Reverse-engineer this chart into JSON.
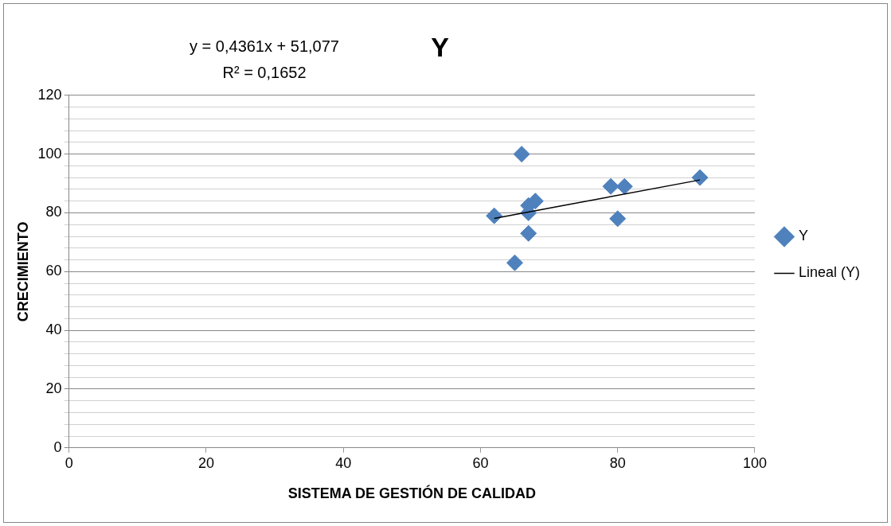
{
  "chart_data": {
    "type": "scatter",
    "title": "Y",
    "xlabel": "SISTEMA DE GESTIÓN DE CALIDAD",
    "ylabel": "CRECIMIENTO",
    "annotations": [
      "y = 0,4361x + 51,077",
      "R² = 0,1652"
    ],
    "series": [
      {
        "name": "Y",
        "color": "#4f81bd",
        "x": [
          62,
          66,
          65,
          67,
          67,
          67,
          68,
          79,
          81,
          80,
          92
        ],
        "values": [
          79,
          100,
          63,
          73,
          80,
          82.5,
          84,
          89,
          89,
          78,
          92
        ]
      },
      {
        "name": "Lineal (Y)",
        "type": "line",
        "color": "#000000",
        "x": [
          62,
          92
        ],
        "values": [
          78.1,
          91.2
        ],
        "marker": "none"
      }
    ],
    "marker": "diamond",
    "xlim": [
      0,
      100
    ],
    "xticks": [
      0,
      20,
      40,
      60,
      80,
      100
    ],
    "ylim": [
      0,
      120
    ],
    "yticks": [
      0,
      {
        "value": 4,
        "label": null
      },
      {
        "value": 8,
        "label": null
      },
      {
        "value": 12,
        "label": null
      },
      {
        "value": 16,
        "label": null
      },
      20,
      {
        "value": 24,
        "label": null
      },
      {
        "value": 28,
        "label": null
      },
      {
        "value": 32,
        "label": null
      },
      {
        "value": 36,
        "label": null
      },
      40,
      {
        "value": 44,
        "label": null
      },
      {
        "value": 48,
        "label": null
      },
      {
        "value": 52,
        "label": null
      },
      {
        "value": 56,
        "label": null
      },
      60,
      {
        "value": 64,
        "label": null
      },
      {
        "value": 68,
        "label": null
      },
      {
        "value": 72,
        "label": null
      },
      {
        "value": 76,
        "label": null
      },
      80,
      {
        "value": 84,
        "label": null
      },
      {
        "value": 88,
        "label": null
      },
      {
        "value": 92,
        "label": null
      },
      {
        "value": 96,
        "label": null
      },
      100,
      {
        "value": 104,
        "label": null
      },
      {
        "value": 108,
        "label": null
      },
      {
        "value": 112,
        "label": null
      },
      {
        "value": 116,
        "label": null
      },
      120
    ],
    "grid": "y",
    "legend": "right"
  }
}
